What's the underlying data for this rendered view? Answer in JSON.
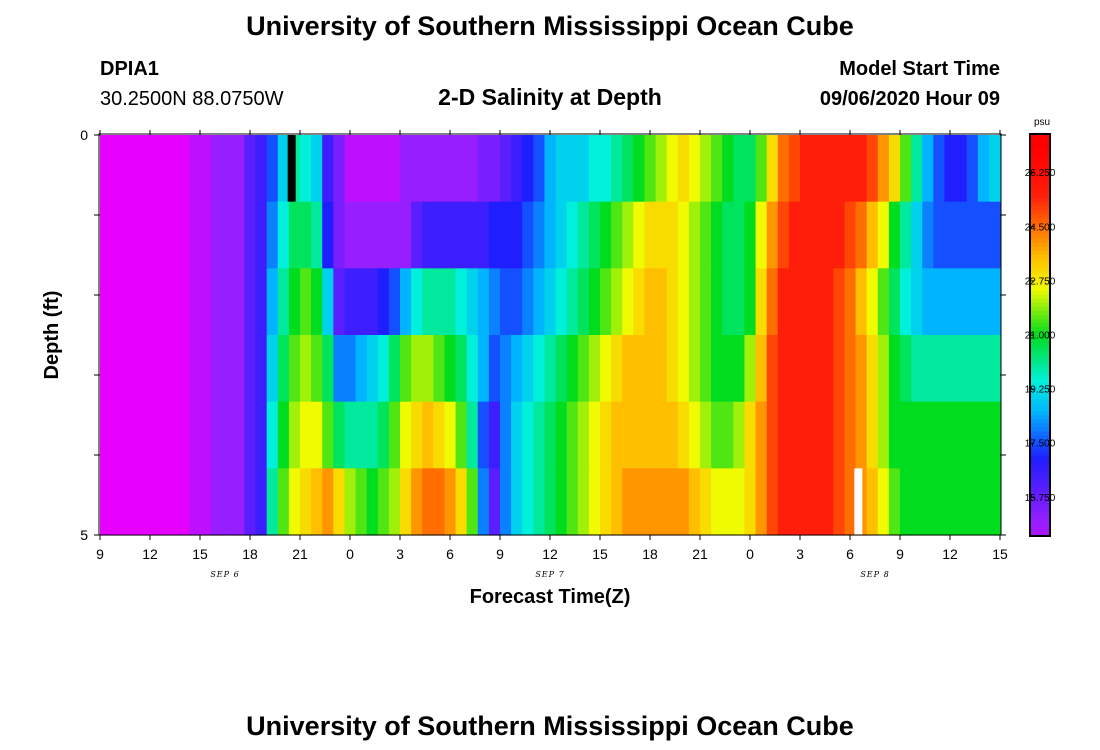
{
  "header": {
    "title": "University of Southern Mississippi Ocean Cube",
    "station_id": "DPIA1",
    "station_coords": "30.2500N 88.0750W",
    "plot_title": "2-D Salinity at Depth",
    "model_start_label": "Model Start Time",
    "model_start_value": "09/06/2020 Hour 09"
  },
  "footer": {
    "title": "University of Southern Mississippi Ocean Cube"
  },
  "chart_data": {
    "type": "heatmap",
    "title": "2-D Salinity at Depth",
    "xlabel": "Forecast Time(Z)",
    "ylabel": "Depth (ft)",
    "units": "psu",
    "x_tick_labels": [
      "9",
      "12",
      "15",
      "18",
      "21",
      "0",
      "3",
      "6",
      "9",
      "12",
      "15",
      "18",
      "21",
      "0",
      "3",
      "6",
      "9",
      "12",
      "15"
    ],
    "date_labels": [
      {
        "label": "SEP 6",
        "tick_index": 2.5
      },
      {
        "label": "SEP 7",
        "tick_index": 9
      },
      {
        "label": "SEP 8",
        "tick_index": 15.5
      }
    ],
    "y_tick_labels": [
      "0",
      "5"
    ],
    "y_minor_ticks": 4,
    "depth_range": [
      0,
      5
    ],
    "hours_range": [
      0,
      54
    ],
    "colorbar": {
      "range": [
        14.5,
        27.5
      ],
      "ticks": [
        "26.250",
        "24.500",
        "22.750",
        "21.000",
        "19.250",
        "17.500",
        "15.750"
      ],
      "tick_values": [
        26.25,
        24.5,
        22.75,
        21.0,
        19.25,
        17.5,
        15.75
      ]
    },
    "depth_rows": 6,
    "row_values": [
      [
        13,
        13,
        13,
        13,
        13,
        13,
        13,
        13,
        14,
        14,
        15,
        15,
        15,
        16,
        16.5,
        17.5,
        19,
        20,
        19.5,
        19,
        16.5,
        15.5,
        14,
        14,
        14,
        14,
        14,
        15,
        15,
        15,
        15,
        15,
        15,
        15,
        15.5,
        15.5,
        16,
        16.5,
        17,
        17.5,
        18.5,
        19,
        19,
        19,
        19.5,
        19.5,
        20,
        20.5,
        21,
        21.5,
        22,
        22.5,
        23,
        22.5,
        22,
        21.5,
        21,
        20.5,
        20.5,
        21.5,
        23,
        24.5,
        25,
        25.5,
        25.5,
        25.5,
        25.5,
        25.5,
        25.5,
        25,
        24,
        23,
        21.5,
        20,
        18.5,
        17.5,
        17,
        17,
        17.5,
        18.5,
        19
      ],
      [
        13,
        13,
        13,
        13,
        13,
        13,
        13,
        13,
        14,
        14,
        15,
        15,
        15,
        16,
        16.5,
        18,
        19.5,
        20.5,
        20.5,
        20,
        17,
        15.5,
        15,
        15,
        15,
        15,
        15,
        15,
        16,
        16.5,
        16.5,
        16.5,
        16.5,
        16.5,
        16.5,
        17,
        17,
        17,
        17.5,
        18,
        18.5,
        19,
        19.5,
        20,
        20.5,
        21,
        21.5,
        22,
        22.5,
        23,
        23,
        23,
        22.5,
        22,
        21.5,
        21,
        20.5,
        20.5,
        21,
        22.5,
        24,
        25,
        25.5,
        25.5,
        25.5,
        25.5,
        25.5,
        25,
        24.5,
        23.5,
        22.5,
        21,
        20,
        19,
        18,
        17.5,
        17.5,
        17.5,
        17.5,
        17.5,
        17.5
      ],
      [
        13,
        13,
        13,
        13,
        13,
        13,
        13,
        13,
        14,
        14,
        15,
        15,
        15,
        16,
        16.5,
        18.5,
        20,
        21,
        21.5,
        21,
        19,
        16,
        16.5,
        16.5,
        16.5,
        17,
        17.5,
        18.5,
        19.5,
        20,
        20,
        20,
        19.5,
        19,
        18.5,
        18,
        17.5,
        17.5,
        18,
        18.5,
        19,
        19.5,
        20,
        20.5,
        21,
        21.5,
        22,
        22.5,
        23,
        23.5,
        23.5,
        23,
        22.5,
        22,
        21.5,
        21,
        20.5,
        20.5,
        21,
        23,
        24.5,
        25.5,
        25.5,
        25.5,
        25.5,
        25.5,
        25,
        24.5,
        23.5,
        22.5,
        21.5,
        20.5,
        19.5,
        19,
        18.5,
        18.5,
        18.5,
        18.5,
        18.5,
        18.5,
        18.5
      ],
      [
        13,
        13,
        13,
        13,
        13,
        13,
        13,
        13,
        14,
        14,
        15,
        15,
        15,
        16,
        16.5,
        19,
        20.5,
        21.5,
        22,
        21.5,
        20.5,
        18,
        18,
        18.5,
        19,
        19.5,
        20.5,
        21.5,
        22,
        22,
        21.5,
        21,
        20.5,
        19.5,
        18.5,
        17.5,
        18,
        18.5,
        19,
        19.5,
        20,
        20.5,
        21,
        21.5,
        22,
        22.5,
        23,
        23.5,
        23.5,
        23.5,
        23.5,
        23,
        22.5,
        22,
        21.5,
        21,
        21,
        21,
        22,
        23.5,
        25,
        25.5,
        25.5,
        25.5,
        25.5,
        25.5,
        25,
        24.5,
        24,
        23,
        22,
        21,
        20.5,
        20,
        20,
        20,
        20,
        20,
        20,
        20,
        20
      ],
      [
        13,
        13,
        13,
        13,
        13,
        13,
        13,
        13,
        14,
        14,
        15,
        15,
        15,
        16,
        16.5,
        19.5,
        21,
        22,
        22.5,
        22.5,
        21.5,
        20.5,
        20,
        20,
        20,
        20.5,
        21.5,
        22.5,
        23,
        23.5,
        23,
        22.5,
        21.5,
        20,
        17.5,
        16.5,
        18,
        19,
        19.5,
        20,
        20.5,
        21,
        21.5,
        22,
        22.5,
        23,
        23.5,
        23.5,
        23.5,
        23.5,
        23.5,
        23.5,
        23,
        22.5,
        22,
        21.5,
        21.5,
        22,
        23,
        24,
        25,
        25.5,
        25.5,
        25.5,
        25.5,
        25.5,
        25,
        24.5,
        24,
        23,
        22,
        21,
        21,
        21,
        21,
        21,
        21,
        21,
        21,
        21,
        21
      ],
      [
        13,
        13,
        13,
        13,
        13,
        13,
        13,
        13,
        14,
        14,
        15,
        15,
        15,
        16,
        16.5,
        20,
        21.5,
        22.5,
        23,
        23.5,
        24,
        23,
        22,
        21.5,
        21,
        21.5,
        22,
        23,
        24,
        24.5,
        24.5,
        24,
        23,
        21.5,
        18,
        16,
        18,
        19,
        19.5,
        20,
        20.5,
        21,
        21.5,
        22,
        22.5,
        23,
        23.5,
        24,
        24,
        24,
        24,
        24,
        24,
        23.5,
        23,
        22.5,
        22.5,
        22.5,
        23,
        24,
        25,
        25.5,
        25.5,
        25.5,
        25.5,
        25.5,
        25,
        24.5,
        24,
        23.5,
        22.5,
        21.5,
        21,
        21,
        21,
        21,
        21,
        21,
        21,
        21,
        21
      ]
    ],
    "markers": [
      {
        "hours": 11.5,
        "depth_row": 0,
        "color": "#000000"
      },
      {
        "hours": 45.5,
        "depth_row": 5,
        "color": "#ffffff"
      }
    ],
    "colors": {
      "grid_line": "#000000",
      "marker_dark": "#000000",
      "marker_light": "#ffffff"
    }
  }
}
